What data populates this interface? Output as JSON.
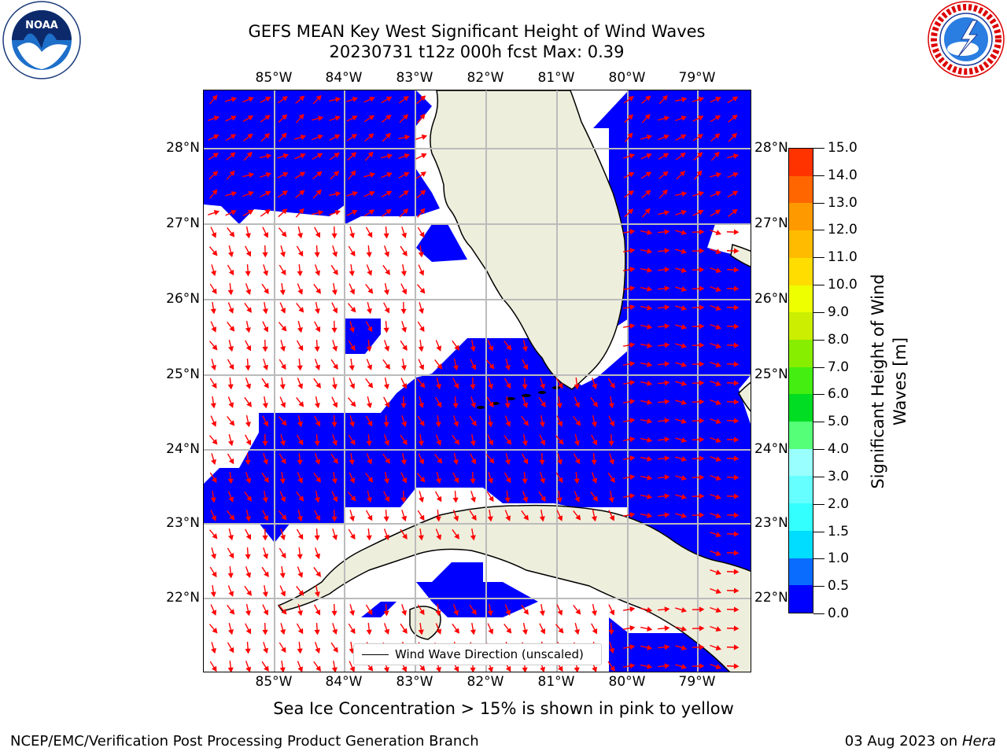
{
  "title_line1": "GEFS MEAN Key West Significant Height of Wind Waves",
  "title_line2": "20230731 t12z 000h fcst   Max: 0.39",
  "lon_labels": [
    "85°W",
    "84°W",
    "83°W",
    "82°W",
    "81°W",
    "80°W",
    "79°W"
  ],
  "lat_labels": [
    "28°N",
    "27°N",
    "26°N",
    "25°N",
    "24°N",
    "23°N",
    "22°N"
  ],
  "legend_label": "Wind Wave Direction (unscaled)",
  "colorbar": {
    "title_line1": "Significant Height of Wind",
    "title_line2": "Waves [m]",
    "ticks": [
      "0.0",
      "0.5",
      "1.0",
      "1.5",
      "2.0",
      "3.0",
      "4.0",
      "5.0",
      "6.0",
      "7.0",
      "8.0",
      "9.0",
      "10.0",
      "11.0",
      "12.0",
      "13.0",
      "14.0",
      "15.0"
    ],
    "colors": [
      "#0000ff",
      "#0a6cff",
      "#00ddff",
      "#33ffff",
      "#66ffff",
      "#99ffff",
      "#55ff77",
      "#00dd22",
      "#44ee11",
      "#88ee00",
      "#ccee00",
      "#eeff00",
      "#ffdd00",
      "#ffbb00",
      "#ff9900",
      "#ff6600",
      "#ff3300"
    ]
  },
  "sea_ice_note": "Sea Ice Concentration > 15% is shown in pink to yellow",
  "footer_left": "NCEP/EMC/Verification Post Processing Product Generation Branch",
  "footer_date": "03 Aug 2023 on",
  "footer_host": "Hera",
  "colors": {
    "ocean_wave": "#0000ff",
    "land": "#eeeedd",
    "arrow": "#ff0000",
    "grid": "#bbbbbb"
  },
  "logos": {
    "left": "noaa-logo",
    "right": "national-weather-service-logo",
    "left_text": "NOAA",
    "right_text": "NATIONAL WEATHER SERVICE"
  }
}
